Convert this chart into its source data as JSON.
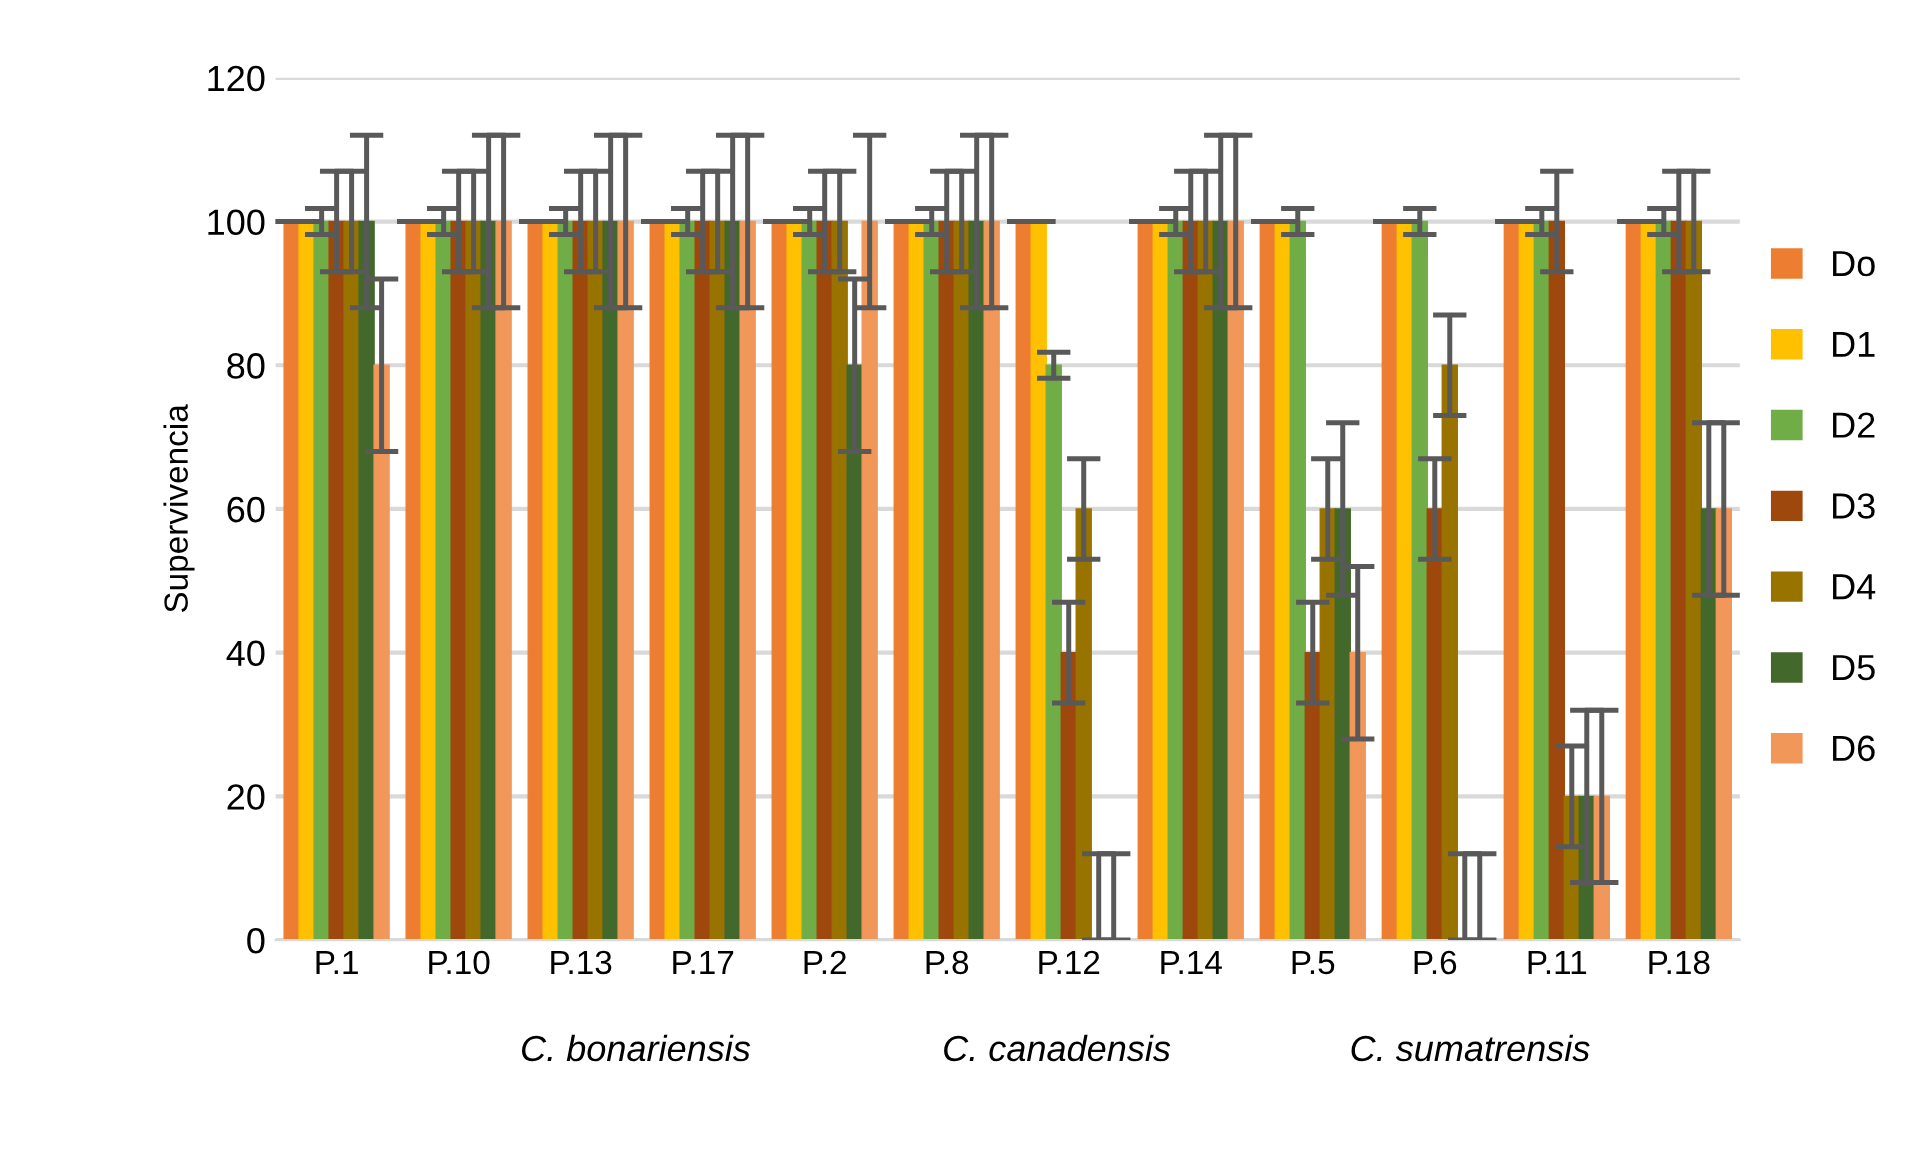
{
  "chart_data": {
    "type": "bar",
    "ylabel": "Supervivencia",
    "categories": [
      "P.1",
      "P.10",
      "P.13",
      "P.17",
      "P.2",
      "P.8",
      "P.12",
      "P.14",
      "P.5",
      "P.6",
      "P.11",
      "P.18"
    ],
    "series": [
      {
        "name": "Do",
        "color": "#ed7d31",
        "values": [
          100,
          100,
          100,
          100,
          100,
          100,
          100,
          100,
          100,
          100,
          100,
          100
        ],
        "errors": [
          0,
          0,
          0,
          0,
          0,
          0,
          0,
          0,
          0,
          0,
          0,
          0
        ]
      },
      {
        "name": "D1",
        "color": "#ffc000",
        "values": [
          100,
          100,
          100,
          100,
          100,
          100,
          100,
          100,
          100,
          100,
          100,
          100
        ],
        "errors": [
          0,
          0,
          0,
          0,
          0,
          0,
          0,
          0,
          0,
          0,
          0,
          0
        ]
      },
      {
        "name": "D2",
        "color": "#70ad47",
        "values": [
          100,
          100,
          100,
          100,
          100,
          100,
          80,
          100,
          100,
          100,
          100,
          100
        ],
        "errors": [
          1.8,
          1.8,
          1.8,
          1.8,
          1.8,
          1.8,
          1.8,
          1.8,
          1.8,
          1.8,
          1.8,
          1.8
        ]
      },
      {
        "name": "D3",
        "color": "#9e480e",
        "values": [
          100,
          100,
          100,
          100,
          100,
          100,
          40,
          100,
          40,
          60,
          100,
          100
        ],
        "errors": [
          7,
          7,
          7,
          7,
          7,
          7,
          7,
          7,
          7,
          7,
          7,
          7
        ]
      },
      {
        "name": "D4",
        "color": "#997300",
        "values": [
          100,
          100,
          100,
          100,
          100,
          100,
          60,
          100,
          60,
          80,
          20,
          100
        ],
        "errors": [
          7,
          7,
          7,
          7,
          7,
          7,
          7,
          7,
          7,
          7,
          7,
          7
        ]
      },
      {
        "name": "D5",
        "color": "#43682b",
        "values": [
          100,
          100,
          100,
          100,
          80,
          100,
          0,
          100,
          60,
          0,
          20,
          60
        ],
        "errors": [
          12,
          12,
          12,
          12,
          12,
          12,
          [
            0,
            12
          ],
          12,
          12,
          [
            0,
            12
          ],
          12,
          12
        ]
      },
      {
        "name": "D6",
        "color": "#f1975a",
        "values": [
          80,
          100,
          100,
          100,
          100,
          100,
          0,
          100,
          40,
          0,
          20,
          60
        ],
        "errors": [
          12,
          12,
          12,
          12,
          12,
          12,
          [
            0,
            12
          ],
          12,
          12,
          [
            0,
            12
          ],
          12,
          12
        ]
      }
    ],
    "ylim": [
      0,
      120
    ],
    "yticks": [
      0,
      20,
      40,
      60,
      80,
      100,
      120
    ],
    "grid": "y",
    "legend": "right",
    "annotations": [
      "C. bonariensis",
      "C. canadensis",
      "C. sumatrensis"
    ]
  }
}
